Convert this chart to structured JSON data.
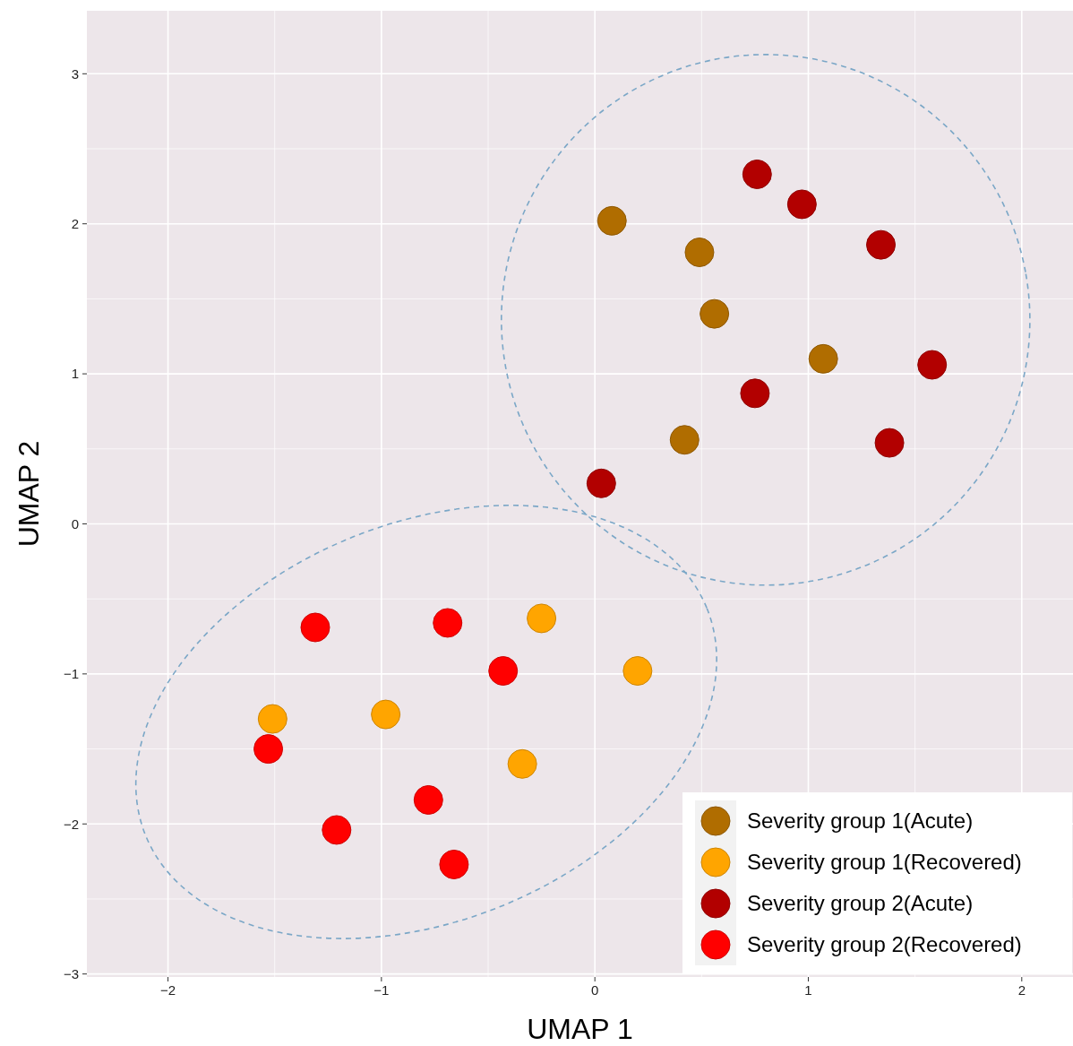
{
  "chart_data": {
    "type": "scatter",
    "xlabel": "UMAP 1",
    "ylabel": "UMAP 2",
    "xlim": [
      -2.38,
      2.24
    ],
    "ylim": [
      -3.02,
      3.42
    ],
    "xticks": [
      {
        "value": -2,
        "label": "−2"
      },
      {
        "value": -1,
        "label": "−1"
      },
      0,
      1,
      2
    ],
    "yticks": [
      {
        "value": -3,
        "label": "−3"
      },
      {
        "value": -2,
        "label": "−2"
      },
      {
        "value": -1,
        "label": "−1"
      },
      0,
      1,
      2,
      3
    ],
    "grid": true,
    "legend": "bottom right",
    "marker": "circle",
    "series": [
      {
        "name": "Severity group 1(Acute)",
        "color": "#b06d00",
        "x": [
          0.08,
          0.49,
          0.56,
          1.07,
          0.42
        ],
        "values": [
          2.02,
          1.81,
          1.4,
          1.1,
          0.56
        ]
      },
      {
        "name": "Severity group 1(Recovered)",
        "color": "#ffa500",
        "x": [
          -0.25,
          0.2,
          -1.51,
          -0.98,
          -0.34
        ],
        "values": [
          -0.63,
          -0.98,
          -1.3,
          -1.27,
          -1.6
        ]
      },
      {
        "name": "Severity group 2(Acute)",
        "color": "#b20000",
        "x": [
          0.76,
          0.97,
          1.34,
          1.58,
          0.75,
          1.38,
          0.03
        ],
        "values": [
          2.33,
          2.13,
          1.86,
          1.06,
          0.87,
          0.54,
          0.27
        ]
      },
      {
        "name": "Severity group 2(Recovered)",
        "color": "#ff0000",
        "x": [
          -1.31,
          -0.69,
          -0.43,
          -1.53,
          -0.78,
          -1.21,
          -0.66
        ],
        "values": [
          -0.69,
          -0.66,
          -0.98,
          -1.5,
          -1.84,
          -2.04,
          -2.27
        ]
      }
    ]
  }
}
